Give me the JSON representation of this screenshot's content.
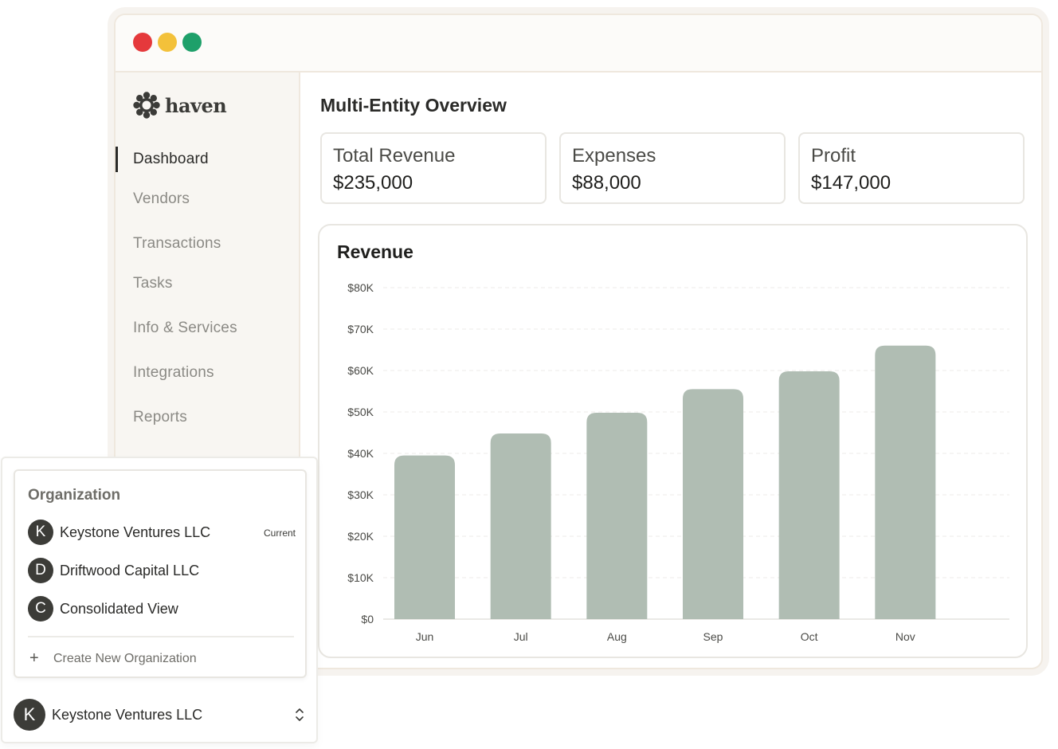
{
  "brand": {
    "name": "haven",
    "logo_icon": "flower-logo-icon"
  },
  "sidebar": {
    "items": [
      {
        "label": "Dashboard",
        "active": true
      },
      {
        "label": "Vendors",
        "active": false
      },
      {
        "label": "Transactions",
        "active": false
      },
      {
        "label": "Tasks",
        "active": false
      },
      {
        "label": "Info & Services",
        "active": false
      },
      {
        "label": "Integrations",
        "active": false
      },
      {
        "label": "Reports",
        "active": false
      }
    ]
  },
  "main": {
    "title": "Multi-Entity Overview",
    "kpis": [
      {
        "label": "Total Revenue",
        "value": "$235,000"
      },
      {
        "label": "Expenses",
        "value": "$88,000"
      },
      {
        "label": "Profit",
        "value": "$147,000"
      }
    ]
  },
  "chart_data": {
    "type": "bar",
    "title": "Revenue",
    "categories": [
      "Jun",
      "Jul",
      "Aug",
      "Sep",
      "Oct",
      "Nov"
    ],
    "values": [
      39500,
      44800,
      49800,
      55500,
      59800,
      66000
    ],
    "ylim": [
      0,
      80000
    ],
    "yticks": [
      0,
      10000,
      20000,
      30000,
      40000,
      50000,
      60000,
      70000,
      80000
    ],
    "ytick_labels": [
      "$0",
      "$10K",
      "$20K",
      "$30K",
      "$40K",
      "$50K",
      "$60K",
      "$70K",
      "$80K"
    ],
    "grid": true,
    "bar_color": "#b0bdb3",
    "xlabel": "",
    "ylabel": ""
  },
  "org_menu": {
    "heading": "Organization",
    "items": [
      {
        "initial": "K",
        "name": "Keystone Ventures LLC",
        "badge": "Current"
      },
      {
        "initial": "D",
        "name": "Driftwood Capital LLC",
        "badge": ""
      },
      {
        "initial": "C",
        "name": "Consolidated View",
        "badge": ""
      }
    ],
    "create_label": "Create New Organization"
  },
  "org_selector": {
    "initial": "K",
    "name": "Keystone Ventures LLC"
  },
  "colors": {
    "accent_dark": "#2a2a28",
    "window_red": "#e5393c",
    "window_yellow": "#f3c13a",
    "window_green": "#1ea06a",
    "sidebar_bg": "#f8f6f2"
  }
}
